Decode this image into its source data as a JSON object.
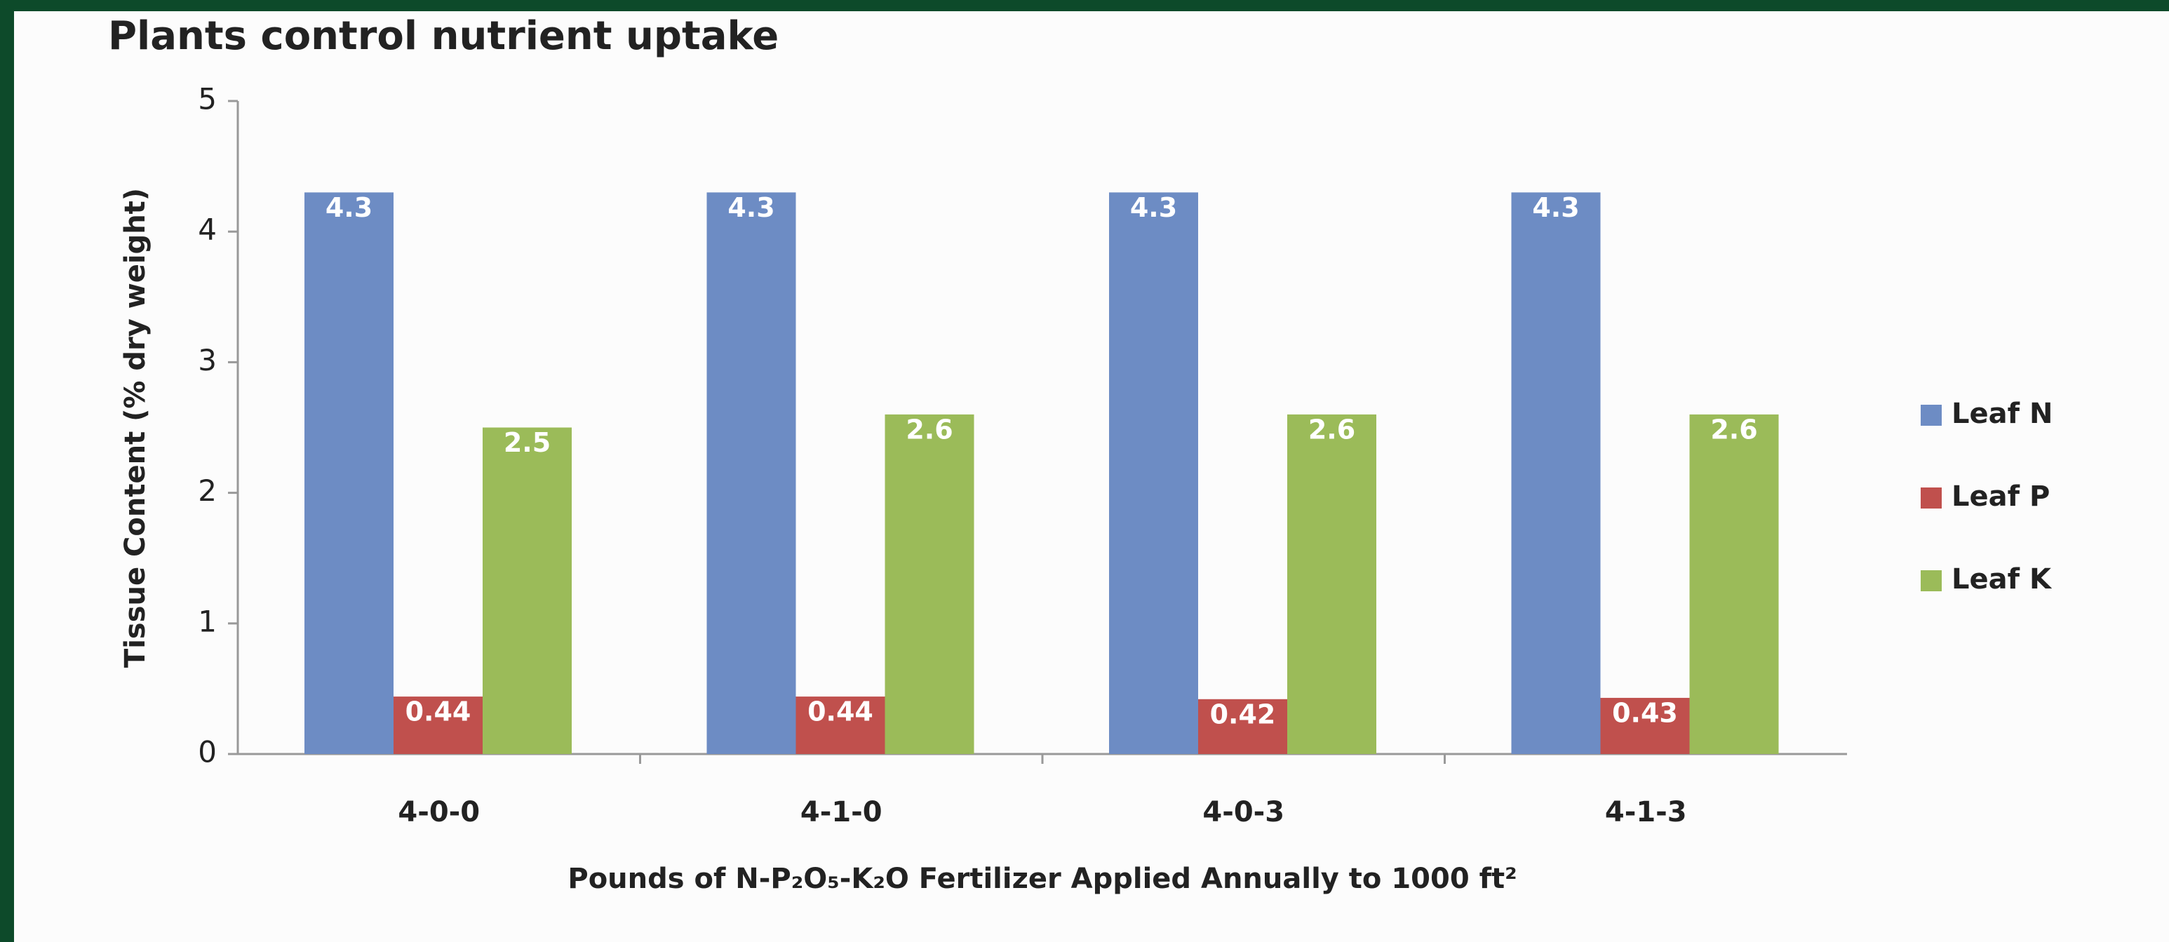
{
  "chart_data": {
    "type": "bar",
    "title": "Plants control nutrient uptake",
    "y_label": "Tissue Content (% dry weight)",
    "x_label": "Pounds of N-P₂O₅-K₂O Fertilizer Applied Annually to 1000 ft²",
    "categories": [
      "4-0-0",
      "4-1-0",
      "4-0-3",
      "4-1-3"
    ],
    "series": [
      {
        "name": "Leaf N",
        "color": "#6d8cc4",
        "values": [
          4.3,
          4.3,
          4.3,
          4.3
        ]
      },
      {
        "name": "Leaf P",
        "color": "#c0504d",
        "values": [
          0.44,
          0.44,
          0.42,
          0.43
        ]
      },
      {
        "name": "Leaf K",
        "color": "#9bbb59",
        "values": [
          2.5,
          2.6,
          2.6,
          2.6
        ]
      }
    ],
    "ylim": [
      0,
      5
    ],
    "yticks": [
      0,
      1,
      2,
      3,
      4,
      5
    ],
    "grid": false,
    "legend": "right"
  }
}
